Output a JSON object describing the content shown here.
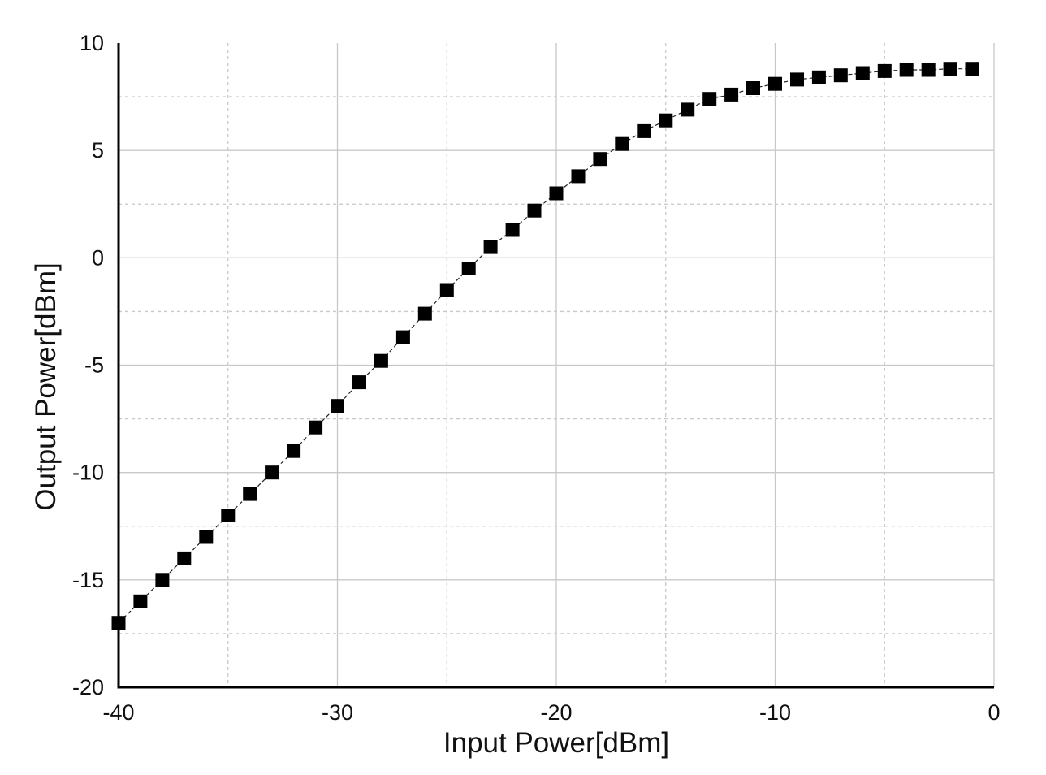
{
  "chart_data": {
    "type": "scatter",
    "title": "",
    "xlabel": "Input Power[dBm]",
    "ylabel": "Output Power[dBm]",
    "xlim": [
      -40,
      0
    ],
    "ylim": [
      -20,
      10
    ],
    "x_ticks": [
      -40,
      -30,
      -20,
      -10,
      0
    ],
    "x_tick_labels": [
      "-40",
      "-30",
      "-20",
      "-10",
      "0"
    ],
    "x_minor_gridlines": [
      -35,
      -25,
      -15,
      -5
    ],
    "y_ticks": [
      -20,
      -15,
      -10,
      -5,
      0,
      5,
      10
    ],
    "y_tick_labels": [
      "-20",
      "-15",
      "-10",
      "-5",
      "0",
      "5",
      "10"
    ],
    "y_minor_gridlines": [
      -17.5,
      -12.5,
      -7.5,
      -2.5,
      2.5,
      7.5
    ],
    "grid": true,
    "legend": "none",
    "marker": "square",
    "connector": "dashed",
    "colors": {
      "marker": "#000000",
      "major_grid": "#c8c8c8",
      "minor_grid": "#c8c8c8",
      "axis": "#000000"
    },
    "series": [
      {
        "x": [
          -40,
          -39,
          -38,
          -37,
          -36,
          -35,
          -34,
          -33,
          -32,
          -31,
          -30,
          -29,
          -28,
          -27,
          -26,
          -25,
          -24,
          -23,
          -22,
          -21,
          -20,
          -19,
          -18,
          -17,
          -16,
          -15,
          -14,
          -13,
          -12,
          -11,
          -10,
          -9,
          -8,
          -7,
          -6,
          -5,
          -4,
          -3,
          -2,
          -1
        ],
        "y": [
          -17.0,
          -16.0,
          -15.0,
          -14.0,
          -13.0,
          -12.0,
          -11.0,
          -10.0,
          -9.0,
          -7.9,
          -6.9,
          -5.8,
          -4.8,
          -3.7,
          -2.6,
          -1.5,
          -0.5,
          0.5,
          1.3,
          2.2,
          3.0,
          3.8,
          4.6,
          5.3,
          5.9,
          6.4,
          6.9,
          7.4,
          7.6,
          7.9,
          8.1,
          8.3,
          8.4,
          8.5,
          8.6,
          8.7,
          8.75,
          8.75,
          8.8,
          8.8
        ]
      }
    ]
  }
}
